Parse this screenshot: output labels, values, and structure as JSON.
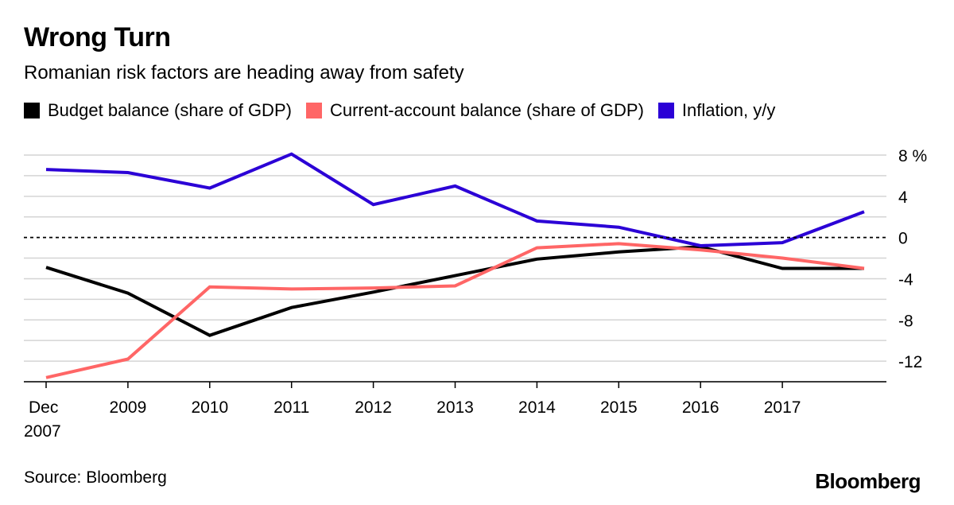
{
  "header": {
    "title": "Wrong Turn",
    "subtitle": "Romanian risk factors are heading away from safety"
  },
  "footer": {
    "source": "Source: Bloomberg",
    "logo": "Bloomberg"
  },
  "chart_data": {
    "type": "line",
    "title": "Wrong Turn",
    "subtitle": "Romanian risk factors are heading away from safety",
    "x": [
      2007.92,
      2008.92,
      2009.92,
      2010.92,
      2011.92,
      2012.92,
      2013.92,
      2014.92,
      2015.92,
      2016.92,
      2017.92
    ],
    "x_tick_labels": [
      {
        "x": 2007.92,
        "label": "Dec",
        "label2": "2007"
      },
      {
        "x": 2008.92,
        "label": "2009",
        "label2": ""
      },
      {
        "x": 2009.92,
        "label": "2010",
        "label2": ""
      },
      {
        "x": 2010.92,
        "label": "2011",
        "label2": ""
      },
      {
        "x": 2011.92,
        "label": "2012",
        "label2": ""
      },
      {
        "x": 2012.92,
        "label": "2013",
        "label2": ""
      },
      {
        "x": 2013.92,
        "label": "2014",
        "label2": ""
      },
      {
        "x": 2014.92,
        "label": "2015",
        "label2": ""
      },
      {
        "x": 2015.92,
        "label": "2016",
        "label2": ""
      },
      {
        "x": 2016.92,
        "label": "2017",
        "label2": ""
      }
    ],
    "y_ticks": [
      {
        "value": 8,
        "label": "8 %"
      },
      {
        "value": 4,
        "label": "4"
      },
      {
        "value": 0,
        "label": "0"
      },
      {
        "value": -4,
        "label": "-4"
      },
      {
        "value": -8,
        "label": "-8"
      },
      {
        "value": -12,
        "label": "-12"
      }
    ],
    "y_gridlines": [
      8,
      6,
      4,
      2,
      0,
      -2,
      -4,
      -6,
      -8,
      -10,
      -12,
      -14
    ],
    "xlim": [
      2007.92,
      2018.2
    ],
    "ylim": [
      -14,
      8
    ],
    "zero_line": "dashed",
    "legend_position": "top",
    "series": [
      {
        "name": "Budget balance (share of GDP)",
        "color": "#000000",
        "points": [
          [
            2007.92,
            -2.9
          ],
          [
            2008.92,
            -5.4
          ],
          [
            2009.92,
            -9.5
          ],
          [
            2010.92,
            -6.8
          ],
          [
            2011.92,
            -5.3
          ],
          [
            2012.92,
            -3.7
          ],
          [
            2013.92,
            -2.1
          ],
          [
            2014.92,
            -1.4
          ],
          [
            2015.92,
            -0.9
          ],
          [
            2016.92,
            -3.0
          ],
          [
            2017.92,
            -3.0
          ]
        ]
      },
      {
        "name": "Current-account balance (share of GDP)",
        "color": "#ff6666",
        "points": [
          [
            2007.92,
            -13.6
          ],
          [
            2008.92,
            -11.8
          ],
          [
            2009.92,
            -4.8
          ],
          [
            2010.92,
            -5.0
          ],
          [
            2011.92,
            -4.9
          ],
          [
            2012.92,
            -4.7
          ],
          [
            2013.92,
            -1.0
          ],
          [
            2014.92,
            -0.6
          ],
          [
            2015.92,
            -1.2
          ],
          [
            2016.92,
            -2.0
          ],
          [
            2017.92,
            -3.0
          ]
        ]
      },
      {
        "name": "Inflation, y/y",
        "color": "#2b00d6",
        "points": [
          [
            2007.92,
            6.6
          ],
          [
            2008.92,
            6.3
          ],
          [
            2009.92,
            4.8
          ],
          [
            2010.92,
            8.1
          ],
          [
            2011.92,
            3.2
          ],
          [
            2012.92,
            5.0
          ],
          [
            2013.92,
            1.6
          ],
          [
            2014.92,
            1.0
          ],
          [
            2015.92,
            -0.8
          ],
          [
            2016.92,
            -0.5
          ],
          [
            2017.92,
            2.5
          ]
        ]
      }
    ]
  }
}
